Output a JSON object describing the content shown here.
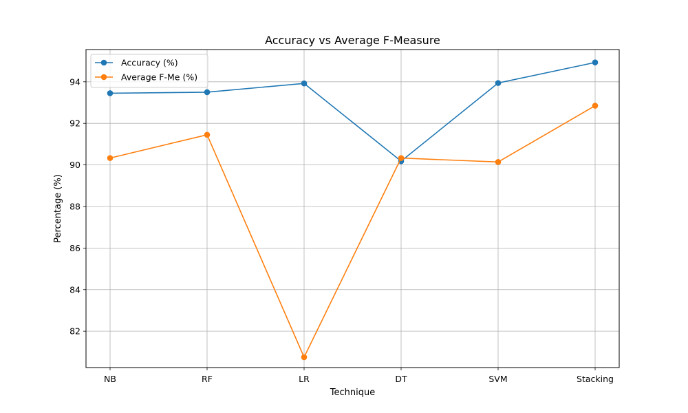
{
  "chart_data": {
    "type": "line",
    "title": "Accuracy vs Average F-Measure",
    "xlabel": "Technique",
    "ylabel": "Percentage (%)",
    "categories": [
      "NB",
      "RF",
      "LR",
      "DT",
      "SVM",
      "Stacking"
    ],
    "series": [
      {
        "name": "Accuracy (%)",
        "color": "#1f77b4",
        "values": [
          93.45,
          93.5,
          93.92,
          90.18,
          93.94,
          94.93
        ]
      },
      {
        "name": "Average F-Me (%)",
        "color": "#ff7f0e",
        "values": [
          90.33,
          91.45,
          80.75,
          90.33,
          90.14,
          92.85
        ]
      }
    ],
    "ylim": [
      80.25,
      95.55
    ],
    "yticks": [
      82,
      84,
      86,
      88,
      90,
      92,
      94
    ],
    "grid": true,
    "legend": "top-left"
  }
}
